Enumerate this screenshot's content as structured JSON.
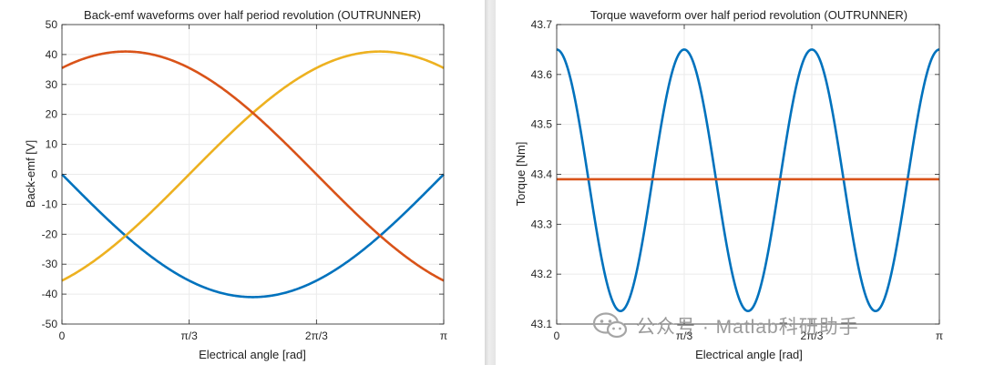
{
  "colors": {
    "blue": "#0072BD",
    "orange": "#D95319",
    "yellow": "#EDB120",
    "grid": "#ebebeb",
    "axis": "#262626"
  },
  "watermark": {
    "text": "公众号 · Matlab科研助手",
    "icon": "wechat-icon"
  },
  "chart_data": [
    {
      "type": "line",
      "title": "Back-emf waveforms over half period revolution (OUTRUNNER)",
      "xlabel": "Electrical angle [rad]",
      "ylabel": "Back-emf [V]",
      "xlim": [
        0,
        3.14159
      ],
      "ylim": [
        -50,
        50
      ],
      "xticks": [
        "0",
        "π/3",
        "2π/3",
        "π"
      ],
      "yticks": [
        "50",
        "40",
        "30",
        "20",
        "10",
        "0",
        "-10",
        "-20",
        "-30",
        "-40",
        "-50"
      ],
      "grid": true,
      "series": [
        {
          "color": "blue",
          "amplitude": 41,
          "phase_deg": 0,
          "shape": "sinusoid",
          "x": [
            0,
            0.524,
            1.047,
            1.571,
            2.094,
            2.618,
            3.142
          ],
          "y": [
            0,
            -20.5,
            -35.5,
            -41,
            -35.5,
            -20.5,
            0
          ]
        },
        {
          "color": "yellow",
          "amplitude": 41,
          "phase_deg": 120,
          "shape": "sinusoid",
          "x": [
            0,
            0.524,
            1.047,
            1.571,
            2.094,
            2.618,
            3.142
          ],
          "y": [
            -35.5,
            -20.5,
            0,
            20.5,
            35.5,
            41,
            35.5
          ]
        },
        {
          "color": "orange",
          "amplitude": 41,
          "phase_deg": -120,
          "shape": "sinusoid",
          "x": [
            0,
            0.524,
            1.047,
            1.571,
            2.094,
            2.618,
            3.142
          ],
          "y": [
            35.5,
            41,
            35.5,
            20.5,
            0,
            -20.5,
            -35.5
          ]
        }
      ]
    },
    {
      "type": "line",
      "title": "Torque waveform over half period revolution (OUTRUNNER)",
      "xlabel": "Electrical angle [rad]",
      "ylabel": "Torque [Nm]",
      "xlim": [
        0,
        3.14159
      ],
      "ylim": [
        43.1,
        43.7
      ],
      "xticks": [
        "0",
        "π/3",
        "2π/3",
        "π"
      ],
      "yticks": [
        "43.7",
        "43.6",
        "43.5",
        "43.4",
        "43.3",
        "43.2",
        "43.1"
      ],
      "grid": true,
      "series": [
        {
          "color": "blue",
          "shape": "ripple",
          "mean": 43.388,
          "amplitude": 0.262,
          "cycles": 3,
          "x": [
            0,
            0.524,
            1.047,
            1.571,
            2.094,
            2.618,
            3.142
          ],
          "y": [
            43.65,
            43.126,
            43.65,
            43.126,
            43.65,
            43.126,
            43.65
          ]
        },
        {
          "color": "orange",
          "shape": "constant",
          "value": 43.39,
          "x": [
            0,
            3.142
          ],
          "y": [
            43.39,
            43.39
          ]
        }
      ]
    }
  ]
}
